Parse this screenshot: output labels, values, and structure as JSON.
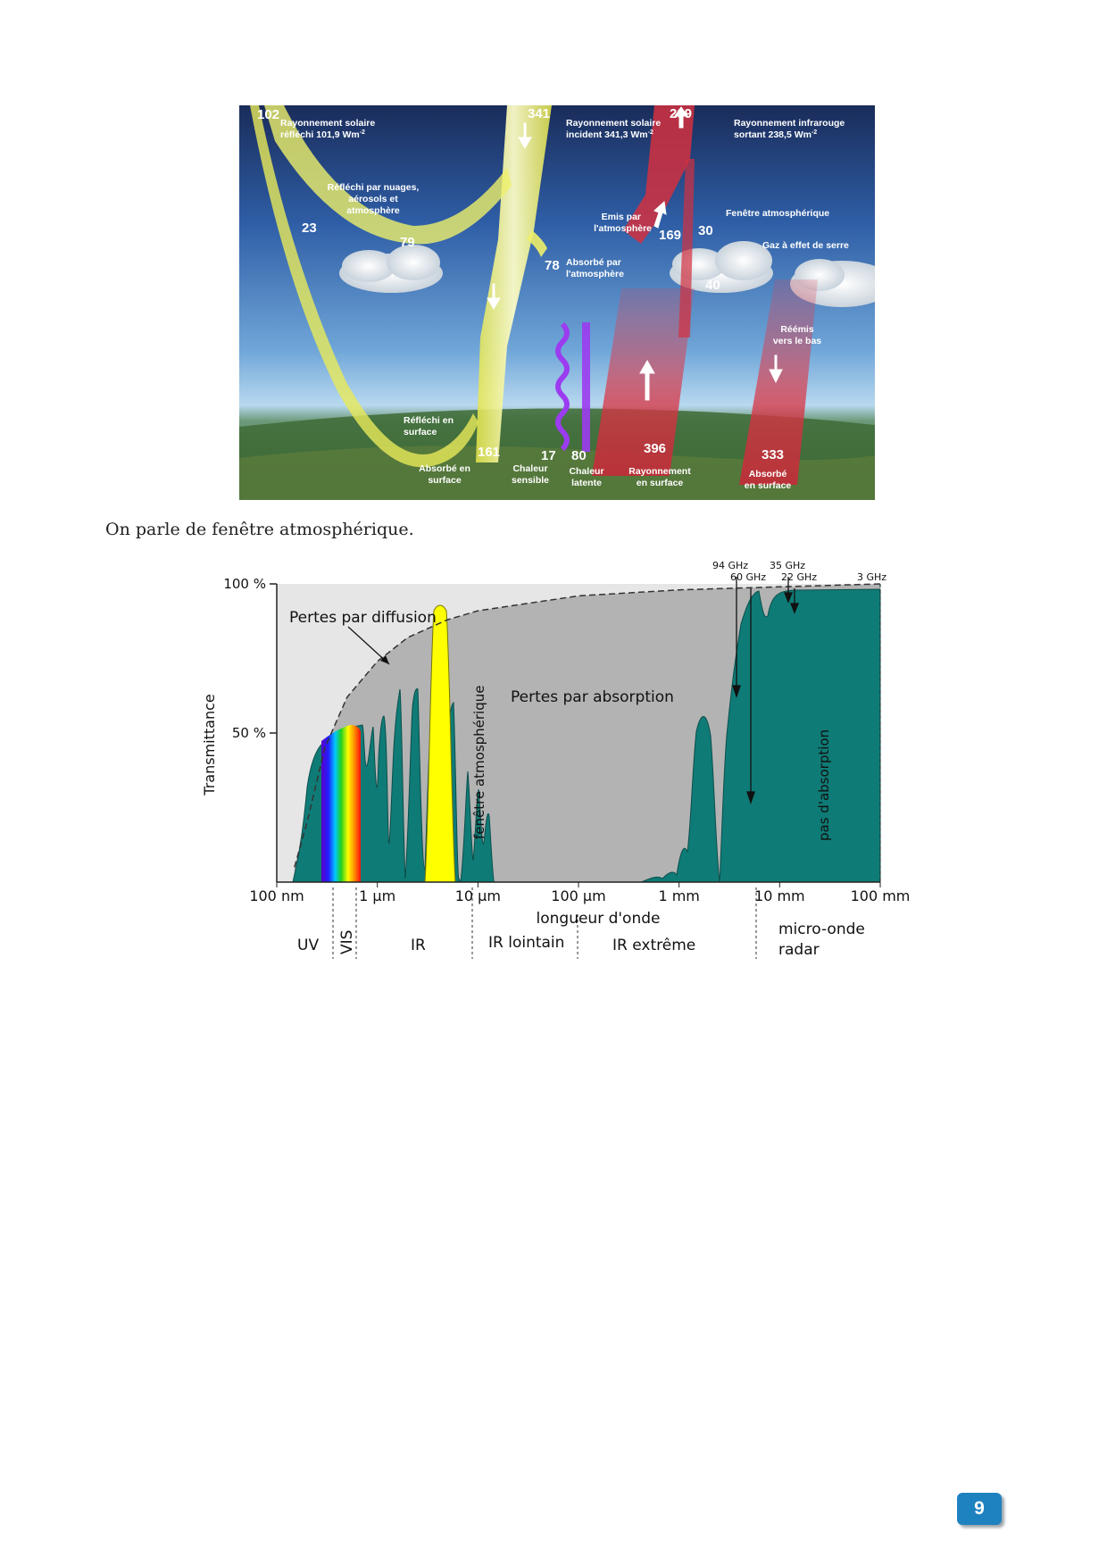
{
  "energy_diagram": {
    "numbers": {
      "reflected_total": "102",
      "incident": "341",
      "outgoing_ir": "239",
      "reflected_surface": "23",
      "reflected_clouds": "79",
      "absorbed_atmosphere": "78",
      "emitted_atmosphere": "169",
      "window": "30",
      "ghg": "40",
      "absorbed_surface": "161",
      "sensible_heat": "17",
      "latent_heat": "80",
      "surface_radiation": "396",
      "back_absorbed": "333"
    },
    "labels": {
      "reflected_solar_1": "Rayonnement solaire",
      "reflected_solar_2": "réfléchi 101,9 Wm",
      "incident_solar_1": "Rayonnement solaire",
      "incident_solar_2": "incident 341,3 Wm",
      "outgoing_ir_1": "Rayonnement infrarouge",
      "outgoing_ir_2": "sortant 238,5 Wm",
      "exponent": "-2",
      "reflected_clouds_1": "Réfléchi par nuages,",
      "reflected_clouds_2": "aérosols et",
      "reflected_clouds_3": "atmosphère",
      "emitted_atm_1": "Emis par",
      "emitted_atm_2": "l'atmosphère",
      "window": "Fenêtre atmosphérique",
      "ghg": "Gaz à effet de serre",
      "absorbed_atm_1": "Absorbé par",
      "absorbed_atm_2": "l'atmosphère",
      "reemitted_1": "Réémis",
      "reemitted_2": "vers le bas",
      "reflected_surface_1": "Réfléchi en",
      "reflected_surface_2": "surface",
      "absorbed_surface_1": "Absorbé en",
      "absorbed_surface_2": "surface",
      "sensible_1": "Chaleur",
      "sensible_2": "sensible",
      "latent_1": "Chaleur",
      "latent_2": "latente",
      "surface_rad_1": "Rayonnement",
      "surface_rad_2": "en surface",
      "back_absorbed_1": "Absorbé",
      "back_absorbed_2": "en surface"
    }
  },
  "caption": "On parle de fenêtre atmosphérique.",
  "transmittance_chart": {
    "ylabel": "Transmittance",
    "y_ticks": [
      "100 %",
      "50 %"
    ],
    "x_ticks": [
      "100 nm",
      "1 µm",
      "10 µm",
      "100 µm",
      "1 mm",
      "10 mm",
      "100 mm"
    ],
    "xlabel": "longueur d'onde",
    "regions": [
      "UV",
      "VIS",
      "IR",
      "IR lointain",
      "IR extrême",
      "micro-onde",
      "radar"
    ],
    "annotations": {
      "scatter": "Pertes par diffusion",
      "absorption": "Pertes par absorption",
      "window": "fenêtre atmosphérique",
      "no_absorption": "pas d'absorption"
    },
    "frequencies": [
      "94 GHz",
      "60 GHz",
      "35 GHz",
      "22 GHz",
      "3 GHz"
    ]
  },
  "chart_data": {
    "type": "area",
    "xscale": "log",
    "xlabel": "longueur d'onde",
    "ylabel": "Transmittance",
    "ylim": [
      0,
      100
    ],
    "xlim": [
      "100 nm",
      "100 mm"
    ],
    "curves": [
      {
        "role": "scattering-limit",
        "x": [
          "0.15 µm",
          "0.2 µm",
          "0.3 µm",
          "0.5 µm",
          "1 µm",
          "2 µm",
          "5 µm",
          "10 µm",
          "100 µm",
          "1 mm",
          "10 mm",
          "100 mm"
        ],
        "y": [
          5,
          20,
          45,
          62,
          74,
          82,
          88,
          91,
          96,
          98,
          99,
          100
        ]
      }
    ],
    "windows": [
      "VIS",
      "10 µm",
      "> 10 mm"
    ]
  },
  "page_number": "9",
  "colors": {
    "teal": "#0f7b76",
    "window_yellow": "#ffff00",
    "grey": "#b0b0b0",
    "light_grey": "#e5e5e5"
  }
}
